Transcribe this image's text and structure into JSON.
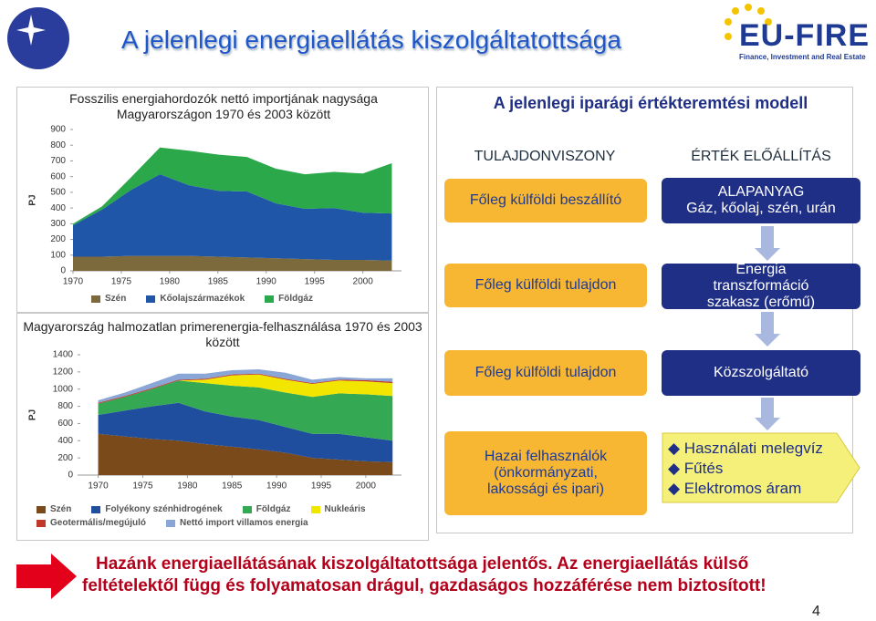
{
  "header": {
    "title": "A jelenlegi energiaellátás kiszolgáltatottsága",
    "logo": "EU-FIRE",
    "logo_tagline": "Finance, Investment and Real Estate"
  },
  "chart_data": [
    {
      "type": "area",
      "stacked": true,
      "title": "Fosszilis energiahordozók nettó importjának nagysága Magyarországon 1970 és 2003 között",
      "y_label": "PJ",
      "x": [
        1970,
        1973,
        1976,
        1979,
        1982,
        1985,
        1988,
        1991,
        1994,
        1997,
        2000,
        2003
      ],
      "xlim": [
        1970,
        2004
      ],
      "xticks": [
        1970,
        1975,
        1980,
        1985,
        1990,
        1995,
        2000
      ],
      "ylim": [
        0,
        900
      ],
      "yticks": [
        0,
        100,
        200,
        300,
        400,
        500,
        600,
        700,
        800,
        900
      ],
      "series": [
        {
          "name": "Szén",
          "color": "#7d6a3c",
          "values": [
            90,
            90,
            95,
            95,
            95,
            90,
            85,
            80,
            75,
            70,
            70,
            65
          ]
        },
        {
          "name": "Kőolajszármazékok",
          "color": "#1f56a8",
          "values": [
            200,
            300,
            420,
            520,
            450,
            420,
            420,
            350,
            320,
            330,
            300,
            300
          ]
        },
        {
          "name": "Földgáz",
          "color": "#2aa84a",
          "values": [
            10,
            20,
            80,
            170,
            220,
            230,
            220,
            220,
            220,
            230,
            250,
            320
          ]
        }
      ]
    },
    {
      "type": "area",
      "stacked": true,
      "title": "Magyarország halmozatlan primerenergia-felhasználása 1970 és 2003 között",
      "y_label": "PJ",
      "x": [
        1970,
        1973,
        1976,
        1979,
        1982,
        1985,
        1988,
        1991,
        1994,
        1997,
        2000,
        2003
      ],
      "xlim": [
        1968,
        2004
      ],
      "xticks": [
        1970,
        1975,
        1980,
        1985,
        1990,
        1995,
        2000
      ],
      "ylim": [
        0,
        1400
      ],
      "yticks": [
        0,
        200,
        400,
        600,
        800,
        1000,
        1200,
        1400
      ],
      "series": [
        {
          "name": "Szén",
          "color": "#7a4a1a",
          "values": [
            480,
            450,
            420,
            400,
            360,
            330,
            300,
            260,
            200,
            180,
            160,
            150
          ]
        },
        {
          "name": "Folyékony szénhidrogének",
          "color": "#1f4e9f",
          "values": [
            220,
            300,
            380,
            440,
            380,
            350,
            340,
            300,
            280,
            300,
            280,
            250
          ]
        },
        {
          "name": "Földgáz",
          "color": "#34a853",
          "values": [
            130,
            160,
            200,
            260,
            330,
            360,
            380,
            400,
            430,
            470,
            500,
            520
          ]
        },
        {
          "name": "Nukleáris",
          "color": "#f2e600",
          "values": [
            0,
            0,
            0,
            0,
            40,
            120,
            150,
            150,
            150,
            150,
            150,
            150
          ]
        },
        {
          "name": "Geotermális/megújuló",
          "color": "#c0392b",
          "values": [
            10,
            10,
            10,
            10,
            10,
            10,
            10,
            10,
            10,
            10,
            15,
            15
          ]
        },
        {
          "name": "Nettó import villamos energia",
          "color": "#8aa6d6",
          "values": [
            30,
            40,
            60,
            70,
            60,
            50,
            50,
            70,
            40,
            30,
            20,
            40
          ]
        }
      ]
    }
  ],
  "model": {
    "title": "A jelenlegi iparági értékteremtési modell",
    "columns": [
      "TULAJDONVISZONY",
      "ÉRTÉK ELŐÁLLÍTÁS"
    ],
    "ownership": [
      "Főleg külföldi beszállító",
      "Főleg külföldi tulajdon",
      "Főleg külföldi tulajdon",
      "Hazai felhasználók (önkormányzati, lakossági és ipari)"
    ],
    "raw_material": {
      "heading": "ALAPANYAG",
      "text": "Gáz, kőolaj, szén, urán"
    },
    "transformation": "Energia transzformáció szakasz (erőmű)",
    "supplier": "Közszolgáltató",
    "uses": [
      "Használati melegvíz",
      "Fűtés",
      "Elektromos áram"
    ]
  },
  "conclusion": [
    "Hazánk energiaellátásának kiszolgáltatottsága jelentős. Az energiaellátás külső",
    "feltételektől függ és folyamatosan drágul, gazdaságos hozzáférése nem biztosított!"
  ],
  "page_number": 4
}
